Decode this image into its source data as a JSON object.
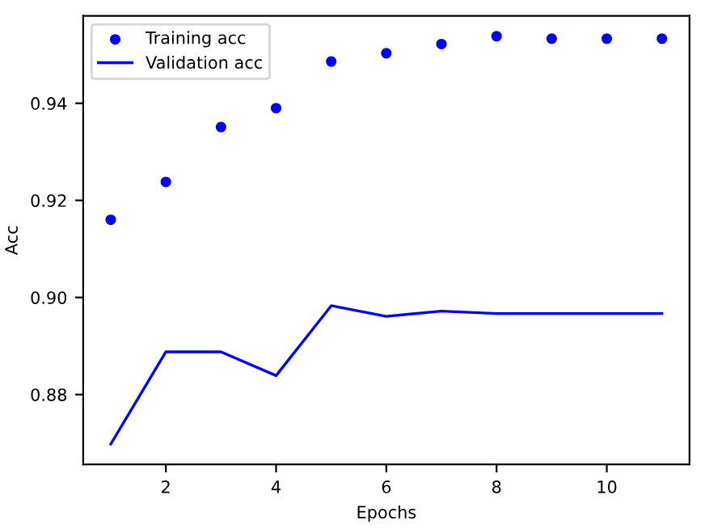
{
  "chart_data": {
    "type": "line",
    "xlabel": "Epochs",
    "ylabel": "Acc",
    "x": [
      1,
      2,
      3,
      4,
      5,
      6,
      7,
      8,
      9,
      10,
      11
    ],
    "series": [
      {
        "name": "Training acc",
        "type": "scatter",
        "color": "#0000ff",
        "marker": "circle",
        "values": [
          0.916,
          0.9238,
          0.9351,
          0.939,
          0.9486,
          0.9503,
          0.9522,
          0.9538,
          0.9533,
          0.9533,
          0.9533
        ]
      },
      {
        "name": "Validation acc",
        "color": "#0000ff",
        "line_style": "solid",
        "values": [
          0.8698,
          0.8888,
          0.8888,
          0.8839,
          0.8983,
          0.8961,
          0.8972,
          0.8967,
          0.8967,
          0.8967,
          0.8967
        ]
      }
    ],
    "xlim": [
      0.5,
      11.5
    ],
    "ylim": [
      0.8656,
      0.958
    ],
    "xticks": [
      2,
      4,
      6,
      8,
      10
    ],
    "yticks": [
      0.88,
      {
        "value": 0.9,
        "label": "0.90"
      },
      0.92,
      0.94
    ],
    "legend": "top left",
    "grid": false
  }
}
